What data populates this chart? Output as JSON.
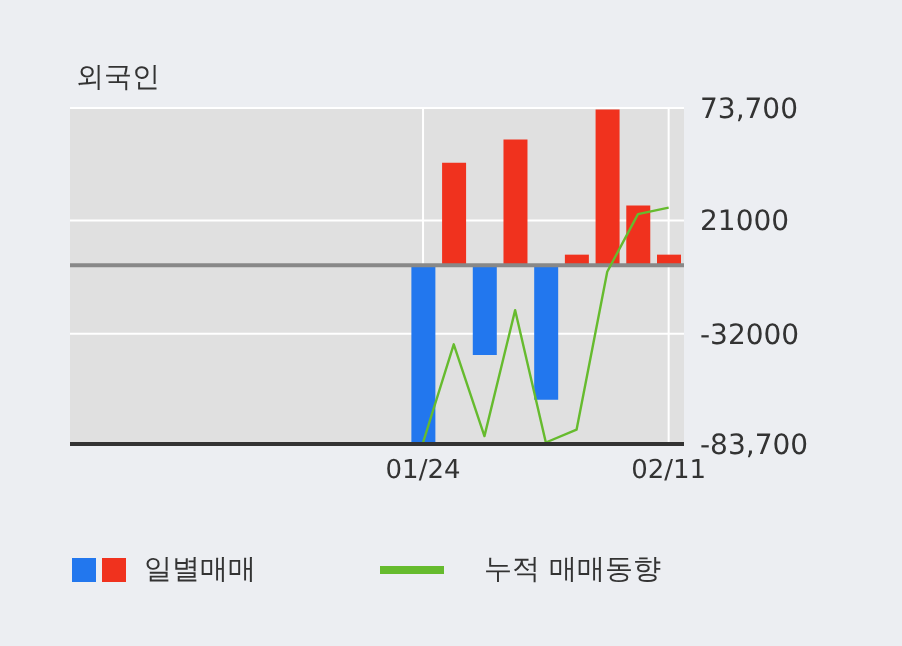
{
  "chart_data": {
    "type": "bar",
    "title": "외국인",
    "categories": [
      null,
      null,
      null,
      null,
      null,
      null,
      null,
      null,
      null,
      null,
      null,
      "01/24",
      null,
      null,
      null,
      null,
      null,
      null,
      null,
      "02/11"
    ],
    "series": [
      {
        "name": "일별매매",
        "colors": [
          null,
          null,
          null,
          null,
          null,
          null,
          null,
          null,
          null,
          null,
          null,
          "#2277ee",
          "#f0321e",
          "#2277ee",
          "#f0321e",
          "#2277ee",
          "#f0321e",
          "#f0321e",
          "#f0321e",
          "#f0321e"
        ],
        "values": [
          null,
          null,
          null,
          null,
          null,
          null,
          null,
          null,
          null,
          null,
          null,
          -83000,
          48000,
          -42000,
          59000,
          -63000,
          5000,
          73000,
          28000,
          5000
        ]
      },
      {
        "name": "누적 매매동향",
        "type": "line",
        "color": "#66bb2e",
        "values": [
          null,
          null,
          null,
          null,
          null,
          null,
          null,
          null,
          null,
          null,
          null,
          -83000,
          -37000,
          -80000,
          -21000,
          -83000,
          -77000,
          -3000,
          24000,
          27000
        ]
      }
    ],
    "ylim": [
      -83700,
      73700
    ],
    "yticks": [
      {
        "value": 73700,
        "label": "73,700"
      },
      21000,
      -32000,
      {
        "value": -83700,
        "label": "-83,700"
      }
    ],
    "ref_lines": [
      {
        "axis": "y",
        "value": 0,
        "label": null,
        "color": "#888888"
      }
    ],
    "grid": true,
    "legend": "bottom"
  }
}
